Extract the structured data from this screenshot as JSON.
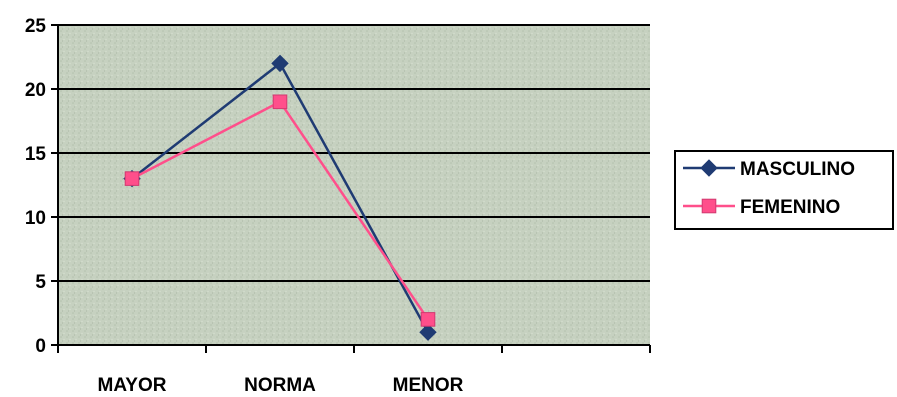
{
  "chart_data": {
    "type": "line",
    "categories": [
      "MAYOR",
      "NORMA",
      "MENOR"
    ],
    "series": [
      {
        "name": "MASCULINO",
        "values": [
          13,
          22,
          1
        ],
        "color": "#1f3b73",
        "marker": "diamond"
      },
      {
        "name": "FEMENINO",
        "values": [
          13,
          19,
          2
        ],
        "color": "#ff4f8b",
        "marker": "square"
      }
    ],
    "ylim": [
      0,
      25
    ],
    "yticks": [
      0,
      5,
      10,
      15,
      20,
      25
    ],
    "grid": true,
    "legend_position": "right",
    "plot_background": "#c8d2c0"
  }
}
